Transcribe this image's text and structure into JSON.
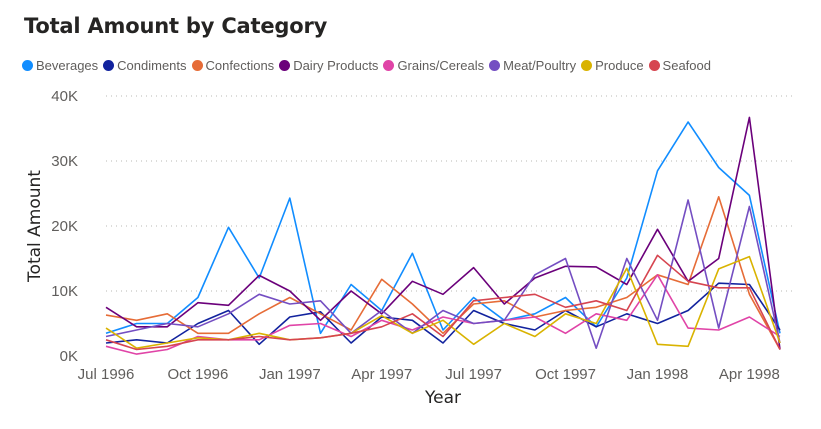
{
  "chart_data": {
    "type": "line",
    "title": "Total Amount by Category",
    "xlabel": "Year",
    "ylabel": "Total Amount",
    "ylim": [
      0,
      40000
    ],
    "yticks": [
      0,
      10000,
      20000,
      30000,
      40000
    ],
    "ytick_labels": [
      "0K",
      "10K",
      "20K",
      "30K",
      "40K"
    ],
    "x_tick_labels": [
      {
        "label": "Jul 1996",
        "index": 0
      },
      {
        "label": "Oct 1996",
        "index": 3
      },
      {
        "label": "Jan 1997",
        "index": 6
      },
      {
        "label": "Apr 1997",
        "index": 9
      },
      {
        "label": "Jul 1997",
        "index": 12
      },
      {
        "label": "Oct 1997",
        "index": 15
      },
      {
        "label": "Jan 1998",
        "index": 18
      },
      {
        "label": "Apr 1998",
        "index": 21
      }
    ],
    "x": [
      "Jul 1996",
      "Aug 1996",
      "Sep 1996",
      "Oct 1996",
      "Nov 1996",
      "Dec 1996",
      "Jan 1997",
      "Feb 1997",
      "Mar 1997",
      "Apr 1997",
      "May 1997",
      "Jun 1997",
      "Jul 1997",
      "Aug 1997",
      "Sep 1997",
      "Oct 1997",
      "Nov 1997",
      "Dec 1997",
      "Jan 1998",
      "Feb 1998",
      "Mar 1998",
      "Apr 1998",
      "May 1998"
    ],
    "grid": true,
    "legend_position": "top-left",
    "series": [
      {
        "name": "Beverages",
        "color": "#118DFF",
        "values": [
          3500,
          5000,
          5000,
          9000,
          19800,
          12000,
          24300,
          3500,
          11000,
          7000,
          15800,
          4000,
          9000,
          5500,
          6500,
          9000,
          4500,
          12000,
          28500,
          36000,
          29000,
          24700,
          3500
        ]
      },
      {
        "name": "Condiments",
        "color": "#12239E",
        "values": [
          2000,
          2500,
          2000,
          5000,
          7000,
          1800,
          6000,
          6800,
          2000,
          6000,
          5500,
          2000,
          7000,
          5000,
          4000,
          7000,
          4500,
          6500,
          5000,
          7000,
          11200,
          11000,
          4000
        ]
      },
      {
        "name": "Confections",
        "color": "#E66C37",
        "values": [
          6300,
          5500,
          6500,
          3500,
          3500,
          6500,
          9000,
          6500,
          4000,
          11800,
          8000,
          3500,
          8000,
          8500,
          6000,
          7000,
          7500,
          9000,
          12500,
          11000,
          24500,
          9500,
          1000
        ]
      },
      {
        "name": "Dairy Products",
        "color": "#6B007B",
        "values": [
          7500,
          4500,
          4500,
          8200,
          7800,
          12400,
          10000,
          5500,
          10000,
          6500,
          11500,
          9500,
          13600,
          8000,
          12000,
          13800,
          13700,
          11000,
          19500,
          11500,
          15000,
          36700,
          1000
        ]
      },
      {
        "name": "Grains/Cereals",
        "color": "#E044A7",
        "values": [
          1500,
          300,
          1000,
          3000,
          2500,
          2500,
          4700,
          5000,
          3000,
          5500,
          4000,
          6000,
          5000,
          5500,
          6000,
          3500,
          6500,
          5500,
          12500,
          4300,
          4000,
          6000,
          3000
        ]
      },
      {
        "name": "Meat/Poultry",
        "color": "#744EC2",
        "values": [
          3000,
          4000,
          5000,
          4500,
          6500,
          9500,
          8000,
          8500,
          3500,
          7000,
          3500,
          7000,
          5000,
          5500,
          12500,
          15000,
          1200,
          15000,
          5500,
          24000,
          4300,
          23000,
          2000
        ]
      },
      {
        "name": "Produce",
        "color": "#D9B300",
        "values": [
          4300,
          1200,
          2000,
          2800,
          2500,
          3500,
          2500,
          2800,
          3500,
          6200,
          3500,
          5500,
          1800,
          5000,
          3000,
          6500,
          5000,
          13500,
          1800,
          1500,
          13400,
          15300,
          2000
        ]
      },
      {
        "name": "Seafood",
        "color": "#D64550",
        "values": [
          2500,
          1000,
          1500,
          2500,
          2500,
          3000,
          2500,
          2800,
          3500,
          4500,
          6500,
          3000,
          8500,
          9000,
          9500,
          7500,
          8500,
          7000,
          15500,
          11500,
          10500,
          10500,
          1000
        ]
      }
    ]
  }
}
